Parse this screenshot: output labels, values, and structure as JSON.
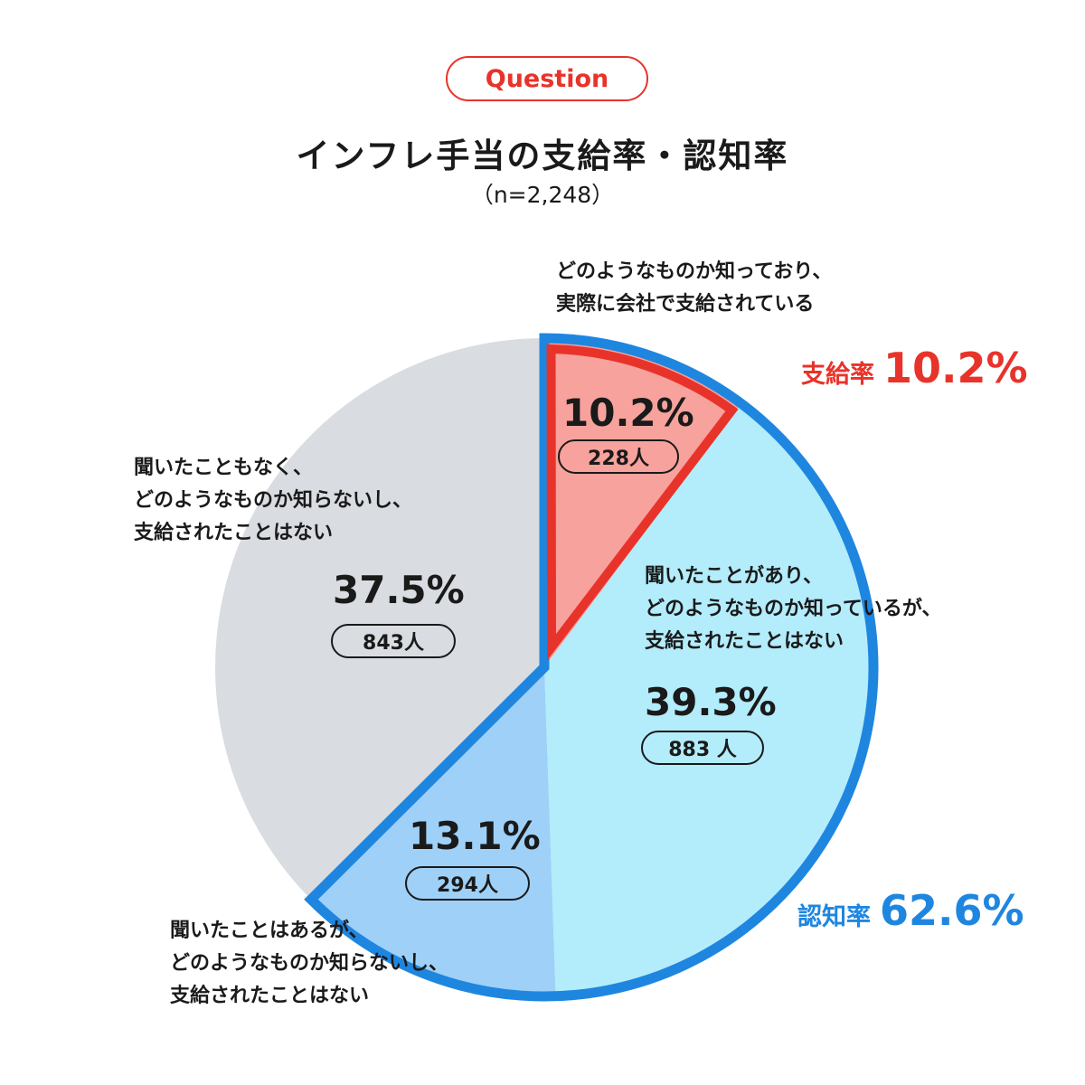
{
  "header": {
    "badge": "Question",
    "title": "インフレ手当の支給率・認知率",
    "subtitle": "（n=2,248）"
  },
  "chart_data": {
    "type": "pie",
    "title": "インフレ手当の支給率・認知率",
    "sample_size": "n=2,248",
    "slices": [
      {
        "description": [
          "どのようなものか知っており、",
          "実際に会社で支給されている"
        ],
        "value": 10.2,
        "label": "10.2%",
        "count": "228人",
        "color": "#f7a29c",
        "stroke": "#e8332a"
      },
      {
        "description": [
          "聞いたことがあり、",
          "どのようなものか知っているが、",
          "支給されたことはない"
        ],
        "value": 39.3,
        "label": "39.3%",
        "count": "883 人",
        "color": "#b3ecfb",
        "stroke": "none"
      },
      {
        "description": [
          "聞いたことはあるが、",
          "どのようなものか知らないし、",
          "支給されたことはない"
        ],
        "value": 13.1,
        "label": "13.1%",
        "count": "294人",
        "color": "#9fd0f7",
        "stroke": "none"
      },
      {
        "description": [
          "聞いたこともなく、",
          "どのようなものか知らないし、",
          "支給されたことはない"
        ],
        "value": 37.5,
        "label": "37.5%",
        "count": "843人",
        "color": "#d9dce1",
        "stroke": "none"
      }
    ],
    "callouts": {
      "payment_rate": {
        "label": "支給率",
        "value": "10.2%",
        "color": "#e8332a"
      },
      "awareness_rate": {
        "label": "認知率",
        "value": "62.6%",
        "color": "#1f86e0"
      }
    },
    "awareness_outline_color": "#1f86e0"
  }
}
